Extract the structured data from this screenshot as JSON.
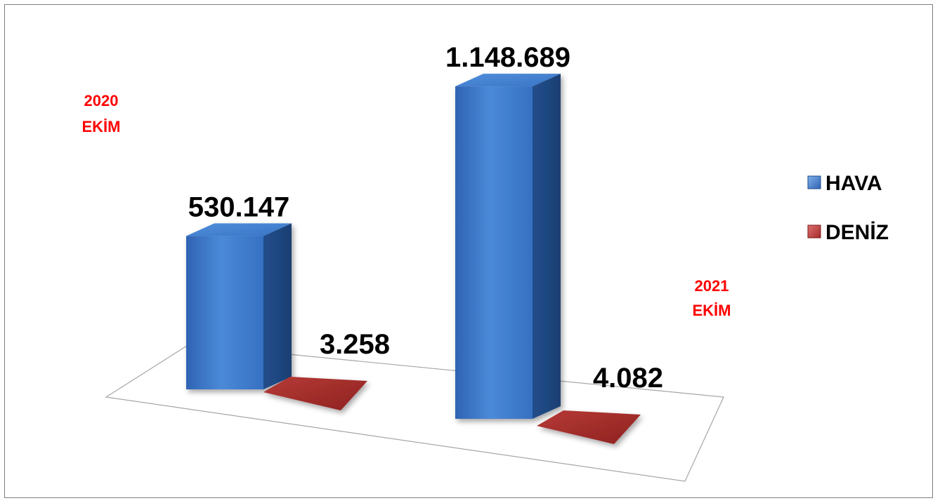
{
  "chart_data": {
    "type": "bar",
    "categories": [
      [
        "2020",
        "EKİM"
      ],
      [
        "2021",
        "EKİM"
      ]
    ],
    "series": [
      {
        "name": "HAVA",
        "values": [
          530147,
          1148689
        ],
        "labels": [
          "530.147",
          "1.148.689"
        ],
        "color": "#3a78c9"
      },
      {
        "name": "DENİZ",
        "values": [
          3258,
          4082
        ],
        "labels": [
          "3.258",
          "4.082"
        ],
        "color": "#a32a2a"
      }
    ],
    "legend_position": "right",
    "category_label_color": "#ff0000",
    "three_d": true
  }
}
